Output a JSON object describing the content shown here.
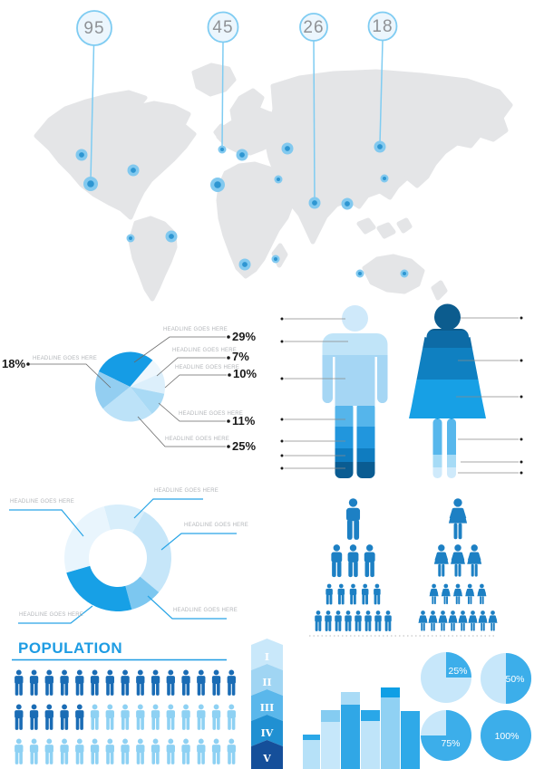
{
  "map": {
    "callouts": [
      {
        "value": "95"
      },
      {
        "value": "45"
      },
      {
        "value": "26"
      },
      {
        "value": "18"
      }
    ]
  },
  "pie": {
    "labels": [
      {
        "headline": "HEADLINE GOES HERE",
        "value": "29%"
      },
      {
        "headline": "HEADLINE GOES HERE",
        "value": "7%"
      },
      {
        "headline": "HEADLINE GOES HERE",
        "value": "10%"
      },
      {
        "headline": "HEADLINE GOES HERE",
        "value": "18%"
      },
      {
        "headline": "HEADLINE GOES HERE",
        "value": "11%"
      },
      {
        "headline": "HEADLINE GOES HERE",
        "value": "25%"
      }
    ]
  },
  "donut": {
    "labels": [
      {
        "headline": "HEADLINE GOES HERE"
      },
      {
        "headline": "HEADLINE GOES HERE"
      },
      {
        "headline": "HEADLINE GOES HERE"
      },
      {
        "headline": "HEADLINE GOES HERE"
      },
      {
        "headline": "HEADLINE GOES HERE"
      }
    ]
  },
  "population": {
    "title": "POPULATION",
    "rows": [
      {
        "dark": 15,
        "light": 0
      },
      {
        "dark": 5,
        "light": 10
      },
      {
        "dark": 0,
        "light": 15
      }
    ]
  },
  "pyramids": {
    "male_rows": [
      1,
      3,
      5,
      8
    ],
    "female_rows": [
      1,
      3,
      5,
      8
    ]
  },
  "levels": {
    "items": [
      "I",
      "II",
      "III",
      "IV",
      "V"
    ]
  },
  "percent_circles": {
    "items": [
      "25%",
      "50%",
      "75%",
      "100%"
    ]
  },
  "colors": {
    "accent": "#1e9ce3",
    "icon_dark": "#1a6cb5",
    "icon_light": "#8ed1f3",
    "pyramid": "#1d80c4",
    "circle_bright": "#3caeea",
    "circle_pale": "#c7e7fa",
    "map_gray": "#e4e5e7"
  },
  "chart_data": [
    {
      "type": "map",
      "title": "world map with location bubbles and callout values",
      "callout_values": [
        95,
        45,
        26,
        18
      ],
      "marker_count": 17
    },
    {
      "type": "pie",
      "title": "pie chart with callout labels",
      "labels": [
        "HEADLINE GOES HERE",
        "HEADLINE GOES HERE",
        "HEADLINE GOES HERE",
        "HEADLINE GOES HERE",
        "HEADLINE GOES HERE",
        "HEADLINE GOES HERE"
      ],
      "values": [
        29,
        7,
        10,
        11,
        25,
        18
      ],
      "unit": "%"
    },
    {
      "type": "pie",
      "subtype": "donut",
      "title": "donut chart with five callout labels",
      "labels": [
        "HEADLINE GOES HERE",
        "HEADLINE GOES HERE",
        "HEADLINE GOES HERE",
        "HEADLINE GOES HERE",
        "HEADLINE GOES HERE"
      ],
      "values_est_pct": [
        13,
        28,
        10,
        25,
        24
      ]
    },
    {
      "type": "table",
      "subtype": "pictogram-pyramid",
      "series": [
        {
          "name": "male",
          "rows": [
            1,
            3,
            5,
            8
          ]
        },
        {
          "name": "female",
          "rows": [
            1,
            3,
            5,
            8
          ]
        }
      ]
    },
    {
      "type": "table",
      "subtype": "pictogram-grid",
      "title": "POPULATION",
      "rows_of_15": [
        {
          "dark": 15,
          "light": 0
        },
        {
          "dark": 5,
          "light": 10
        },
        {
          "dark": 0,
          "light": 15
        }
      ]
    },
    {
      "type": "bar",
      "title": "untitled bar chart (relative heights, no axis labels)",
      "values_relative": [
        42,
        72,
        94,
        72,
        100,
        71
      ]
    },
    {
      "type": "pie",
      "subtype": "percent-circles",
      "values": [
        25,
        50,
        75,
        100
      ],
      "unit": "%"
    },
    {
      "type": "table",
      "subtype": "level-stack",
      "labels": [
        "I",
        "II",
        "III",
        "IV",
        "V"
      ]
    }
  ]
}
